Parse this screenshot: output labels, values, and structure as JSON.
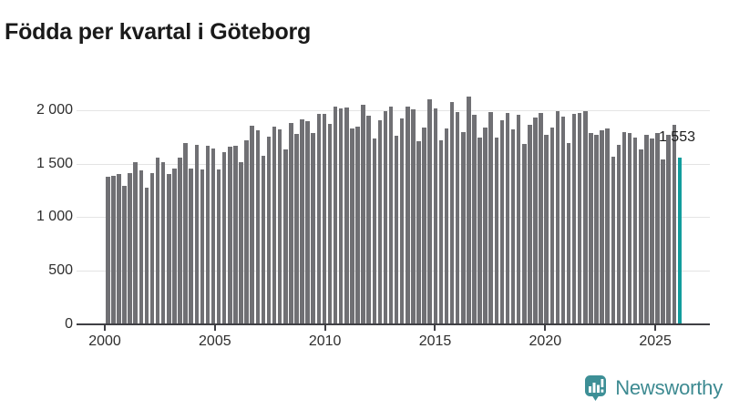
{
  "title": "Födda per kvartal i Göteborg",
  "annotation": {
    "latest_value_label": "1 553"
  },
  "branding": {
    "name": "Newsworthy",
    "icon": "newsworthy-bubble-chart-icon"
  },
  "colors": {
    "bar": "#707074",
    "highlight_bar": "#129d9d",
    "brand_teal": "#3d8a91",
    "gridline": "#e4e4e4",
    "axis": "#3f3f44",
    "title_text": "#1a1a1a",
    "axis_text": "#2e2e2e"
  },
  "chart_data": {
    "type": "bar",
    "title": "Födda per kvartal i Göteborg",
    "xlabel": "",
    "ylabel": "",
    "ylim": [
      0,
      2150
    ],
    "grid": "horizontal",
    "legend": false,
    "yticks": [
      0,
      500,
      1000,
      1500,
      2000
    ],
    "ytick_labels": [
      "0",
      "500",
      "1 000",
      "1 500",
      "2 000"
    ],
    "xtick_labels": [
      "2000",
      "2005",
      "2010",
      "2015",
      "2020",
      "2025"
    ],
    "highlight_index": 103,
    "highlight_value_label": "1 553",
    "categories": [
      "2000 Q1",
      "2000 Q2",
      "2000 Q3",
      "2000 Q4",
      "2001 Q1",
      "2001 Q2",
      "2001 Q3",
      "2001 Q4",
      "2002 Q1",
      "2002 Q2",
      "2002 Q3",
      "2002 Q4",
      "2003 Q1",
      "2003 Q2",
      "2003 Q3",
      "2003 Q4",
      "2004 Q1",
      "2004 Q2",
      "2004 Q3",
      "2004 Q4",
      "2005 Q1",
      "2005 Q2",
      "2005 Q3",
      "2005 Q4",
      "2006 Q1",
      "2006 Q2",
      "2006 Q3",
      "2006 Q4",
      "2007 Q1",
      "2007 Q2",
      "2007 Q3",
      "2007 Q4",
      "2008 Q1",
      "2008 Q2",
      "2008 Q3",
      "2008 Q4",
      "2009 Q1",
      "2009 Q2",
      "2009 Q3",
      "2009 Q4",
      "2010 Q1",
      "2010 Q2",
      "2010 Q3",
      "2010 Q4",
      "2011 Q1",
      "2011 Q2",
      "2011 Q3",
      "2011 Q4",
      "2012 Q1",
      "2012 Q2",
      "2012 Q3",
      "2012 Q4",
      "2013 Q1",
      "2013 Q2",
      "2013 Q3",
      "2013 Q4",
      "2014 Q1",
      "2014 Q2",
      "2014 Q3",
      "2014 Q4",
      "2015 Q1",
      "2015 Q2",
      "2015 Q3",
      "2015 Q4",
      "2016 Q1",
      "2016 Q2",
      "2016 Q3",
      "2016 Q4",
      "2017 Q1",
      "2017 Q2",
      "2017 Q3",
      "2017 Q4",
      "2018 Q1",
      "2018 Q2",
      "2018 Q3",
      "2018 Q4",
      "2019 Q1",
      "2019 Q2",
      "2019 Q3",
      "2019 Q4",
      "2020 Q1",
      "2020 Q2",
      "2020 Q3",
      "2020 Q4",
      "2021 Q1",
      "2021 Q2",
      "2021 Q3",
      "2021 Q4",
      "2022 Q1",
      "2022 Q2",
      "2022 Q3",
      "2022 Q4",
      "2023 Q1",
      "2023 Q2",
      "2023 Q3",
      "2023 Q4",
      "2024 Q1",
      "2024 Q2",
      "2024 Q3",
      "2024 Q4",
      "2025 Q1",
      "2025 Q2",
      "2025 Q3",
      "2025 Q4"
    ],
    "values": [
      1371,
      1380,
      1397,
      1286,
      1406,
      1514,
      1437,
      1271,
      1409,
      1549,
      1506,
      1400,
      1451,
      1549,
      1686,
      1449,
      1671,
      1443,
      1663,
      1634,
      1443,
      1600,
      1657,
      1663,
      1506,
      1714,
      1851,
      1806,
      1566,
      1749,
      1843,
      1814,
      1629,
      1877,
      1777,
      1914,
      1891,
      1786,
      1963,
      1963,
      1871,
      2034,
      2014,
      2020,
      1823,
      1843,
      2043,
      1943,
      1734,
      1906,
      1986,
      2029,
      1757,
      1920,
      2029,
      2006,
      1709,
      1834,
      2100,
      2014,
      1714,
      1829,
      2071,
      1977,
      1791,
      2128,
      1957,
      1737,
      1834,
      1977,
      1737,
      1900,
      1971,
      1820,
      1957,
      1677,
      1863,
      1929,
      1971,
      1766,
      1834,
      1991,
      1937,
      1691,
      1966,
      1971,
      1986,
      1786,
      1766,
      1806,
      1823,
      1557,
      1671,
      1791,
      1786,
      1737,
      1629,
      1763,
      1734,
      1780,
      1537,
      1766,
      1863,
      1553
    ]
  }
}
